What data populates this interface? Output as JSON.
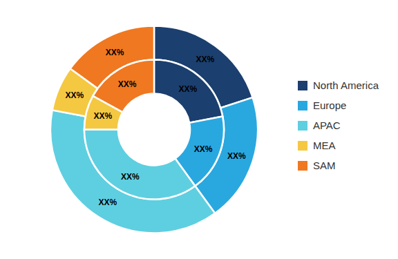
{
  "chart_data": {
    "type": "donut",
    "categories": [
      "North America",
      "Europe",
      "APAC",
      "MEA",
      "SAM"
    ],
    "colors": [
      "#1b3f6e",
      "#29a8e0",
      "#5ecfe0",
      "#f5c842",
      "#f07820"
    ],
    "series": [
      {
        "values": [
          20,
          20,
          38,
          7,
          15
        ],
        "value_labels": [
          "XX%",
          "XX%",
          "XX%",
          "XX%",
          "XX%"
        ]
      },
      {
        "values": [
          22,
          18,
          35,
          8,
          17
        ],
        "value_labels": [
          "XX%",
          "XX%",
          "XX%",
          "XX%",
          "XX%"
        ]
      }
    ],
    "data_labels": true,
    "legend": "right"
  }
}
